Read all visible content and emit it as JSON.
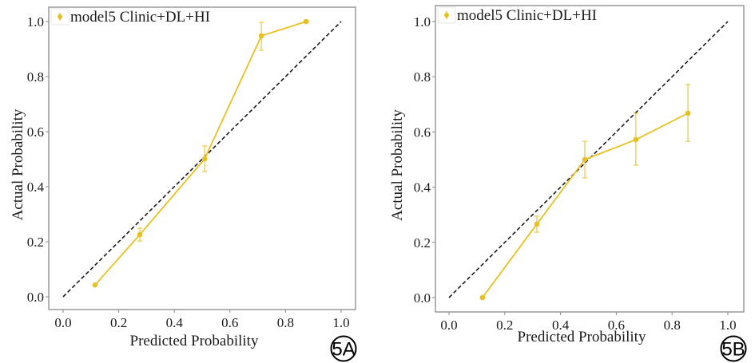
{
  "chart_data": [
    {
      "type": "line",
      "panel_label": "5A",
      "title": "",
      "xlabel": "Predicted Probability",
      "ylabel": "Actual Probability",
      "xlim": [
        0.0,
        1.0
      ],
      "ylim": [
        0.0,
        1.0
      ],
      "xticks": [
        "0.0",
        "0.2",
        "0.4",
        "0.6",
        "0.8",
        "1.0"
      ],
      "yticks": [
        "0.0",
        "0.2",
        "0.4",
        "0.6",
        "0.8",
        "1.0"
      ],
      "grid": false,
      "legend_position": "top-left",
      "reference_line": {
        "style": "dashed",
        "color": "#1a1a1a",
        "from": [
          0,
          0
        ],
        "to": [
          1,
          1
        ]
      },
      "series": [
        {
          "name": "model5 Clinic+DL+HI",
          "color": "#E8C020",
          "x": [
            0.115,
            0.276,
            0.509,
            0.713,
            0.874
          ],
          "y": [
            0.043,
            0.226,
            0.501,
            0.948,
            1.0
          ],
          "y_err_low": [
            null,
            0.203,
            0.455,
            0.896,
            null
          ],
          "y_err_high": [
            null,
            0.249,
            0.548,
            0.997,
            null
          ]
        }
      ]
    },
    {
      "type": "line",
      "panel_label": "5B",
      "title": "",
      "xlabel": "Predicted Probability",
      "ylabel": "Actual Probability",
      "xlim": [
        0.0,
        1.0
      ],
      "ylim": [
        0.0,
        1.0
      ],
      "xticks": [
        "0.0",
        "0.2",
        "0.4",
        "0.6",
        "0.8",
        "1.0"
      ],
      "yticks": [
        "0.0",
        "0.2",
        "0.4",
        "0.6",
        "0.8",
        "1.0"
      ],
      "grid": false,
      "legend_position": "top-left",
      "reference_line": {
        "style": "dashed",
        "color": "#1a1a1a",
        "from": [
          0,
          0
        ],
        "to": [
          1,
          1
        ]
      },
      "series": [
        {
          "name": "model5 Clinic+DL+HI",
          "color": "#E8C020",
          "x": [
            0.12,
            0.315,
            0.487,
            0.67,
            0.857
          ],
          "y": [
            0.0,
            0.266,
            0.5,
            0.572,
            0.668
          ],
          "y_err_low": [
            null,
            0.237,
            0.434,
            0.48,
            0.566
          ],
          "y_err_high": [
            null,
            0.295,
            0.566,
            0.668,
            0.772
          ]
        }
      ]
    }
  ]
}
